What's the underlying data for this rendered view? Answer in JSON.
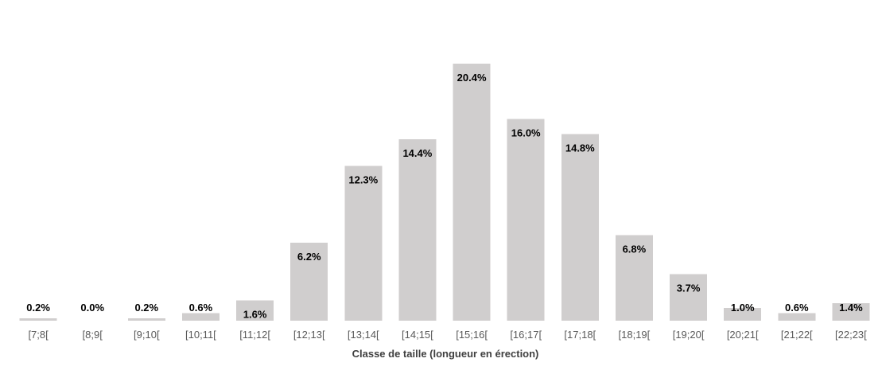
{
  "chart_data": {
    "type": "bar",
    "title": "",
    "xlabel": "Classe de taille (longueur en érection)",
    "ylabel": "",
    "categories": [
      "[7;8[",
      "[8;9[",
      "[9;10[",
      "[10;11[",
      "[11;12[",
      "[12;13[",
      "[13;14[",
      "[14;15[",
      "[15;16[",
      "[16;17[",
      "[17;18[",
      "[18;19[",
      "[19;20[",
      "[20;21[",
      "[21;22[",
      "[22;23["
    ],
    "values": [
      0.2,
      0.0,
      0.2,
      0.6,
      1.6,
      6.2,
      12.3,
      14.4,
      20.4,
      16.0,
      14.8,
      6.8,
      3.7,
      1.0,
      0.6,
      1.4
    ],
    "value_labels": [
      "0.2%",
      "0.0%",
      "0.2%",
      "0.6%",
      "1.6%",
      "6.2%",
      "12.3%",
      "14.4%",
      "20.4%",
      "16.0%",
      "14.8%",
      "6.8%",
      "3.7%",
      "1.0%",
      "0.6%",
      "1.4%"
    ],
    "ylim": [
      0,
      21
    ],
    "grid": false,
    "legend": "none",
    "colors": {
      "bar": "#d0cece",
      "value_label": "#000000",
      "tick_label": "#595959",
      "axis_title": "#404040"
    }
  }
}
